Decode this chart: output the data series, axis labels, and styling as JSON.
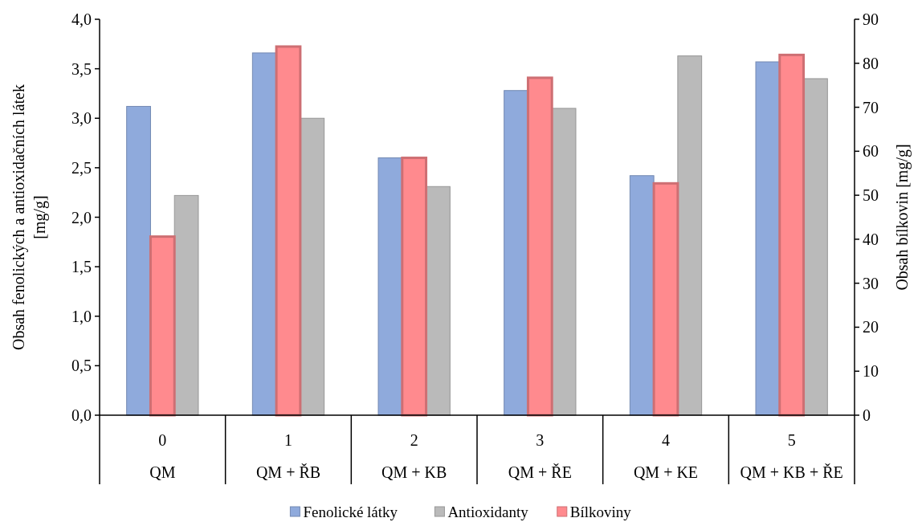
{
  "chart_data": {
    "type": "bar",
    "categories": [
      "0\nQM",
      "1\nQM + ŘB",
      "2\nQM + KB",
      "3\nQM + ŘE",
      "4\nQM + KE",
      "5\nQM + KB + ŘE"
    ],
    "ylabel": "Obsah fenolických a antioxidačních látek [mg/g]",
    "y2label": "Obsah bílkovin [mg/g]",
    "ylim": [
      0,
      4
    ],
    "yticks": [
      {
        "value": 0,
        "label": "0,0"
      },
      {
        "value": 0.5,
        "label": "0,5"
      },
      {
        "value": 1,
        "label": "1,0"
      },
      {
        "value": 1.5,
        "label": "1,5"
      },
      {
        "value": 2,
        "label": "2,0"
      },
      {
        "value": 2.5,
        "label": "2,5"
      },
      {
        "value": 3,
        "label": "3,0"
      },
      {
        "value": 3.5,
        "label": "3,5"
      },
      {
        "value": 4,
        "label": "4,0"
      }
    ],
    "y2lim": [
      0,
      90
    ],
    "y2ticks": [
      0,
      10,
      20,
      30,
      40,
      50,
      60,
      70,
      80,
      90
    ],
    "legend": "bottom",
    "grid": false,
    "series": [
      {
        "name": "Fenolické látky",
        "color": "#8faadc",
        "values": [
          3.12,
          3.66,
          2.6,
          3.28,
          2.42,
          3.57
        ]
      },
      {
        "name": "Antioxidanty",
        "color": "#bababa",
        "values": [
          2.22,
          3.0,
          2.31,
          3.1,
          3.63,
          3.4
        ]
      },
      {
        "name": "Bílkoviny",
        "color": "#ff8a8e",
        "axis": "y2",
        "values": [
          40.6,
          83.8,
          58.5,
          76.7,
          52.7,
          81.9
        ]
      }
    ]
  }
}
